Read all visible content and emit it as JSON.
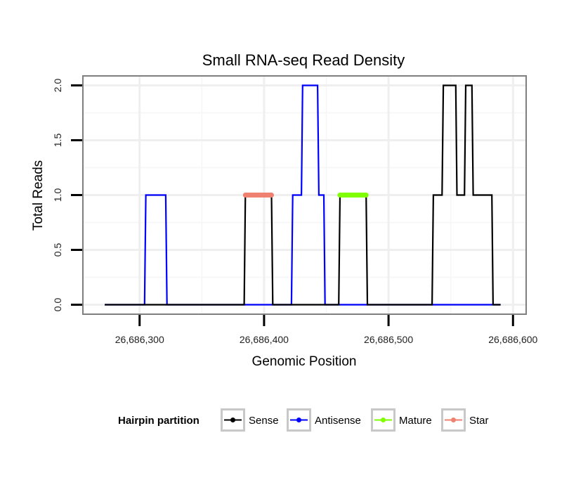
{
  "chart_data": {
    "type": "line",
    "title": "Small RNA-seq Read Density",
    "xlabel": "Genomic Position",
    "ylabel": "Total Reads",
    "xlim": [
      26686255,
      26686610
    ],
    "ylim": [
      -0.08,
      2.08
    ],
    "x_ticks": [
      26686300,
      26686400,
      26686500,
      26686600
    ],
    "x_tick_labels": [
      "26,686,300",
      "26,686,400",
      "26,686,500",
      "26,686,600"
    ],
    "y_ticks": [
      0,
      0.5,
      1,
      1.5,
      2
    ],
    "y_tick_labels": [
      "0.0",
      "0.5",
      "1.0",
      "1.5",
      "2.0"
    ],
    "grid": true,
    "legend": {
      "title": "Hairpin partition",
      "placement": "bottom",
      "entries": [
        "Sense",
        "Antisense",
        "Mature",
        "Star"
      ]
    },
    "series": [
      {
        "name": "Sense",
        "color": "#000000",
        "x": [
          26686272,
          26686384,
          26686385,
          26686406,
          26686407,
          26686460,
          26686461,
          26686482,
          26686483,
          26686535,
          26686536,
          26686543,
          26686544,
          26686554,
          26686555,
          26686561,
          26686562,
          26686567,
          26686568,
          26686583,
          26686584,
          26686590
        ],
        "y": [
          0,
          0,
          1,
          1,
          0,
          0,
          1,
          1,
          0,
          0,
          1,
          1,
          2,
          2,
          1,
          1,
          2,
          2,
          1,
          1,
          0,
          0
        ]
      },
      {
        "name": "Antisense",
        "color": "#0000ff",
        "x": [
          26686272,
          26686304,
          26686305,
          26686321,
          26686322,
          26686422,
          26686423,
          26686430,
          26686431,
          26686443,
          26686444,
          26686448,
          26686449,
          26686590
        ],
        "y": [
          0,
          0,
          1,
          1,
          0,
          0,
          1,
          1,
          2,
          2,
          1,
          1,
          0,
          0
        ]
      },
      {
        "name": "Mature",
        "color": "#7fff00",
        "x": [
          26686461,
          26686482
        ],
        "y": [
          1,
          1
        ]
      },
      {
        "name": "Star",
        "color": "#f08070",
        "x": [
          26686385,
          26686406
        ],
        "y": [
          1,
          1
        ]
      }
    ]
  }
}
